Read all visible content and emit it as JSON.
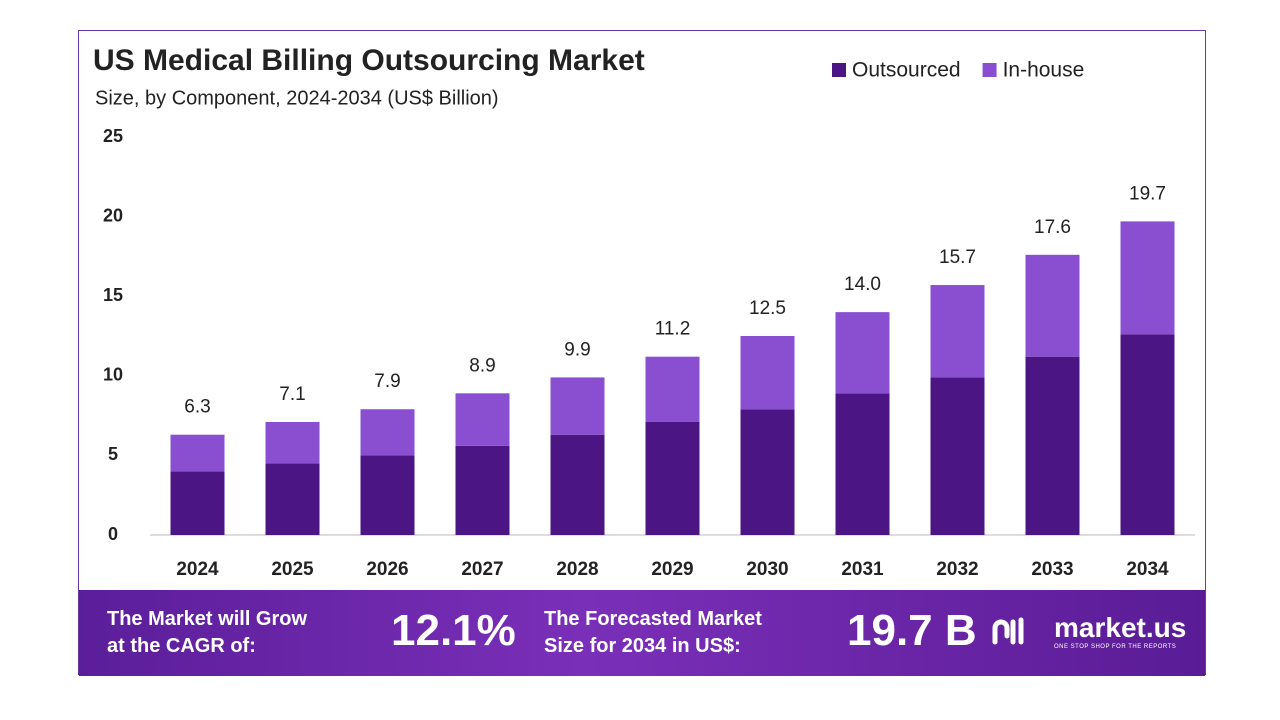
{
  "chart_data": {
    "type": "stacked-bar",
    "title": "US Medical Billing Outsourcing Market",
    "subtitle": "Size, by Component, 2024-2034 (US$ Billion)",
    "categories": [
      "2024",
      "2025",
      "2026",
      "2027",
      "2028",
      "2029",
      "2030",
      "2031",
      "2032",
      "2033",
      "2034"
    ],
    "series": [
      {
        "name": "Outsourced",
        "color": "#4b1583",
        "values": [
          4.0,
          4.5,
          5.0,
          5.6,
          6.3,
          7.1,
          7.9,
          8.9,
          9.9,
          11.2,
          12.6
        ]
      },
      {
        "name": "In-house",
        "color": "#8a4fd1",
        "values": [
          2.3,
          2.6,
          2.9,
          3.3,
          3.6,
          4.1,
          4.6,
          5.1,
          5.8,
          6.4,
          7.1
        ]
      }
    ],
    "totals": [
      6.3,
      7.1,
      7.9,
      8.9,
      9.9,
      11.2,
      12.5,
      14,
      15.7,
      17.6,
      19.7
    ],
    "total_labels": [
      "6.3",
      "7.1",
      "7.9",
      "8.9",
      "9.9",
      "11.2",
      "12.5",
      "14.0",
      "15.7",
      "17.6",
      "19.7"
    ],
    "ylim": [
      0,
      25
    ],
    "yticks": [
      0,
      5,
      10,
      15,
      20,
      25
    ],
    "grid": false
  },
  "footer": {
    "cagr_text": [
      "The Market will Grow",
      "at the CAGR of:"
    ],
    "cagr": "12.1%",
    "forecast_text": [
      "The Forecasted Market",
      "Size for 2034 in US$:"
    ],
    "forecast": "19.7 B",
    "brand": "market.us",
    "tagline": "ONE STOP SHOP FOR THE REPORTS"
  }
}
